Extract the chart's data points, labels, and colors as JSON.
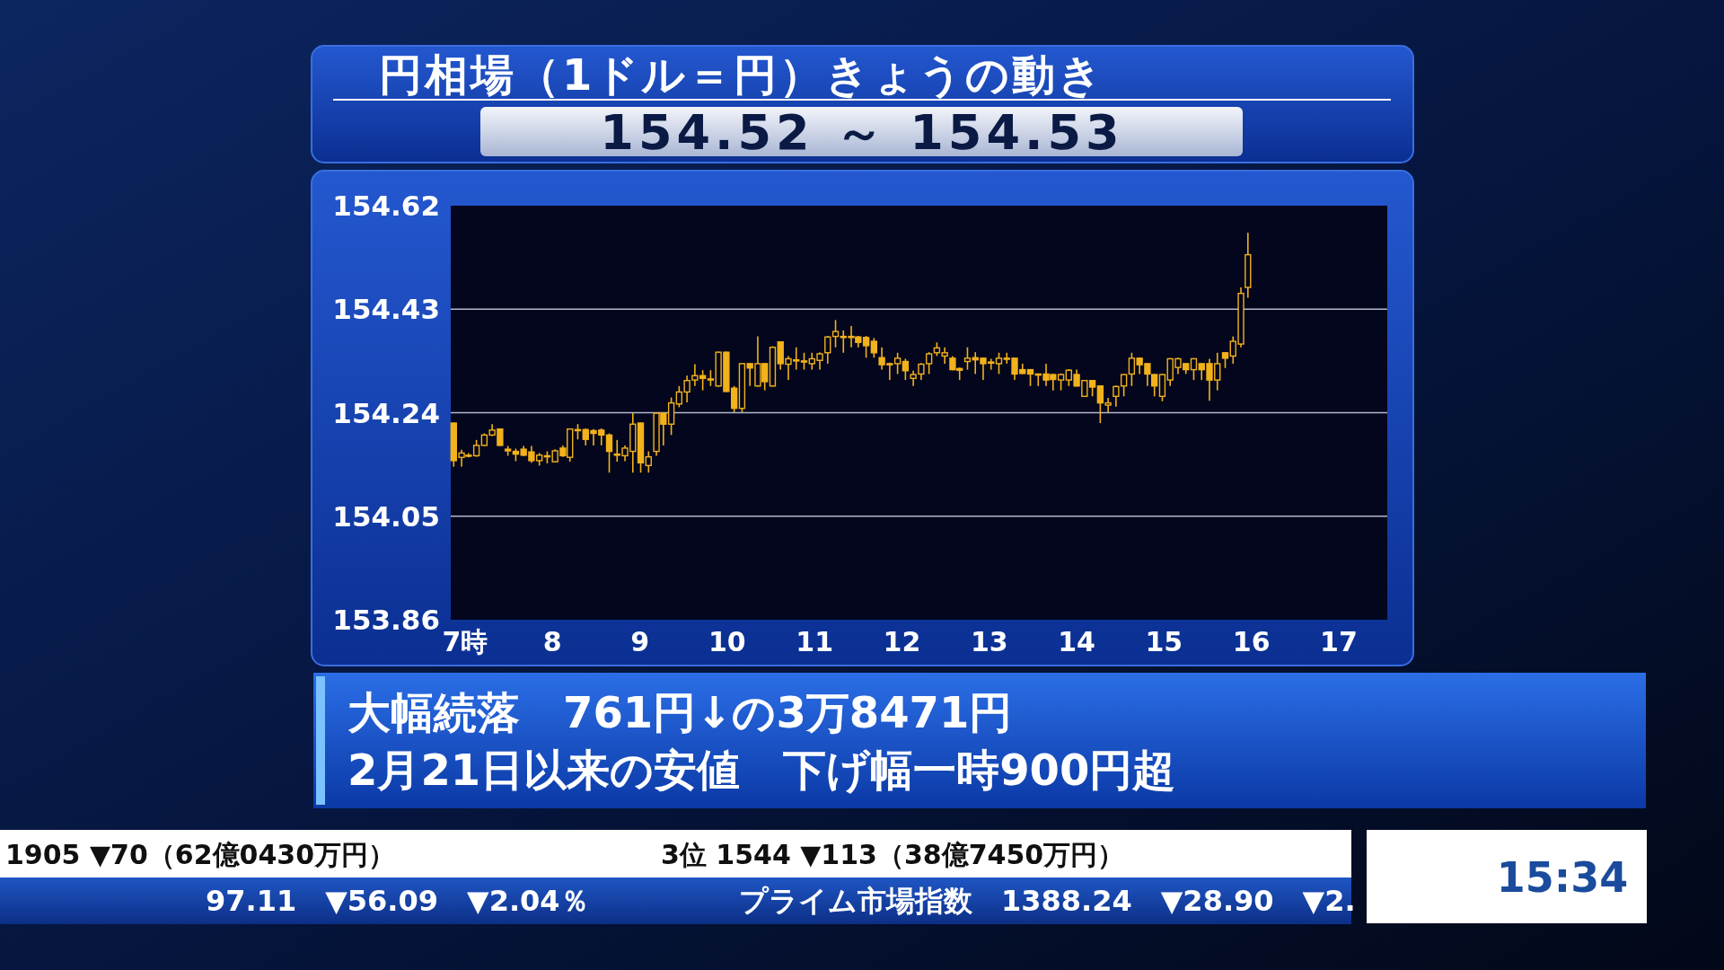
{
  "chart_data": {
    "type": "candlestick",
    "title": "円相場（1ドル＝円）きょうの動き",
    "subtitle": "154.52 ～ 154.53",
    "color": "#f2b21c",
    "xlim": [
      6.836,
      17.555
    ],
    "xticks": [
      {
        "value": 7,
        "label": "7時"
      },
      8,
      9,
      10,
      11,
      12,
      13,
      14,
      15,
      16,
      17
    ],
    "ylim": [
      153.86,
      154.62
    ],
    "yticks": [
      153.86,
      154.05,
      154.24,
      154.43,
      154.62
    ],
    "grid": "y",
    "x": [
      6.87,
      6.96,
      7.04,
      7.13,
      7.22,
      7.31,
      7.4,
      7.49,
      7.58,
      7.67,
      7.76,
      7.85,
      7.94,
      8.03,
      8.12,
      8.2,
      8.29,
      8.38,
      8.47,
      8.56,
      8.65,
      8.74,
      8.83,
      8.92,
      9.01,
      9.1,
      9.19,
      9.27,
      9.36,
      9.45,
      9.54,
      9.63,
      9.72,
      9.81,
      9.9,
      9.99,
      10.08,
      10.17,
      10.26,
      10.35,
      10.43,
      10.52,
      10.61,
      10.7,
      10.79,
      10.88,
      10.97,
      11.06,
      11.15,
      11.24,
      11.33,
      11.42,
      11.5,
      11.59,
      11.68,
      11.77,
      11.86,
      11.95,
      12.04,
      12.13,
      12.22,
      12.31,
      12.4,
      12.49,
      12.58,
      12.66,
      12.75,
      12.84,
      12.93,
      13.02,
      13.11,
      13.2,
      13.29,
      13.38,
      13.47,
      13.56,
      13.65,
      13.73,
      13.82,
      13.91,
      14.0,
      14.09,
      14.18,
      14.27,
      14.36,
      14.45,
      14.54,
      14.63,
      14.72,
      14.81,
      14.89,
      14.98,
      15.07,
      15.16,
      15.25,
      15.34,
      15.43,
      15.52,
      15.61,
      15.7,
      15.79,
      15.88,
      15.96
    ],
    "ohlc": [
      [
        154.221,
        154.222,
        154.141,
        154.152
      ],
      [
        154.158,
        154.172,
        154.141,
        154.166
      ],
      [
        154.161,
        154.166,
        154.158,
        154.162
      ],
      [
        154.161,
        154.19,
        154.159,
        154.18
      ],
      [
        154.18,
        154.202,
        154.179,
        154.199
      ],
      [
        154.199,
        154.219,
        154.197,
        154.208
      ],
      [
        154.21,
        154.211,
        154.179,
        154.18
      ],
      [
        154.173,
        154.179,
        154.161,
        154.17
      ],
      [
        154.169,
        154.174,
        154.151,
        154.164
      ],
      [
        154.173,
        154.179,
        154.16,
        154.162
      ],
      [
        154.168,
        154.179,
        154.148,
        154.152
      ],
      [
        154.152,
        154.166,
        154.143,
        154.162
      ],
      [
        154.161,
        154.169,
        154.147,
        154.159
      ],
      [
        154.15,
        154.173,
        154.149,
        154.17
      ],
      [
        154.175,
        154.18,
        154.159,
        154.161
      ],
      [
        154.158,
        154.211,
        154.15,
        154.21
      ],
      [
        154.207,
        154.219,
        154.191,
        154.209
      ],
      [
        154.209,
        154.211,
        154.18,
        154.191
      ],
      [
        154.207,
        154.21,
        154.18,
        154.202
      ],
      [
        154.208,
        154.211,
        154.18,
        154.199
      ],
      [
        154.199,
        154.202,
        154.13,
        154.169
      ],
      [
        154.164,
        154.19,
        154.15,
        154.162
      ],
      [
        154.161,
        154.18,
        154.151,
        154.175
      ],
      [
        154.169,
        154.239,
        154.13,
        154.219
      ],
      [
        154.221,
        154.222,
        154.13,
        154.148
      ],
      [
        154.143,
        154.169,
        154.13,
        154.159
      ],
      [
        154.169,
        154.24,
        154.161,
        154.239
      ],
      [
        154.239,
        154.24,
        154.18,
        154.219
      ],
      [
        154.219,
        154.268,
        154.199,
        154.258
      ],
      [
        154.256,
        154.289,
        154.25,
        154.278
      ],
      [
        154.278,
        154.308,
        154.259,
        154.299
      ],
      [
        154.3,
        154.329,
        154.289,
        154.308
      ],
      [
        154.308,
        154.318,
        154.281,
        154.303
      ],
      [
        154.302,
        154.318,
        154.289,
        154.3
      ],
      [
        154.289,
        154.352,
        154.288,
        154.351
      ],
      [
        154.351,
        154.352,
        154.278,
        154.279
      ],
      [
        154.285,
        154.289,
        154.241,
        154.248
      ],
      [
        154.248,
        154.331,
        154.241,
        154.33
      ],
      [
        154.33,
        154.331,
        154.289,
        154.322
      ],
      [
        154.289,
        154.38,
        154.288,
        154.33
      ],
      [
        154.33,
        154.331,
        154.281,
        154.297
      ],
      [
        154.289,
        154.362,
        154.288,
        154.36
      ],
      [
        154.37,
        154.371,
        154.319,
        154.33
      ],
      [
        154.329,
        154.344,
        154.3,
        154.339
      ],
      [
        154.337,
        154.36,
        154.319,
        154.335
      ],
      [
        154.335,
        154.35,
        154.319,
        154.333
      ],
      [
        154.33,
        154.35,
        154.319,
        154.339
      ],
      [
        154.336,
        154.351,
        154.319,
        154.348
      ],
      [
        154.35,
        154.381,
        154.33,
        154.379
      ],
      [
        154.38,
        154.41,
        154.36,
        154.389
      ],
      [
        154.38,
        154.391,
        154.35,
        154.379
      ],
      [
        154.379,
        154.399,
        154.36,
        154.38
      ],
      [
        154.379,
        154.381,
        154.36,
        154.369
      ],
      [
        154.378,
        154.381,
        154.341,
        154.363
      ],
      [
        154.371,
        154.377,
        154.341,
        154.35
      ],
      [
        154.341,
        154.36,
        154.319,
        154.328
      ],
      [
        154.33,
        154.332,
        154.3,
        154.329
      ],
      [
        154.33,
        154.35,
        154.311,
        154.34
      ],
      [
        154.334,
        154.339,
        154.3,
        154.317
      ],
      [
        154.303,
        154.317,
        154.289,
        154.31
      ],
      [
        154.311,
        154.331,
        154.3,
        154.329
      ],
      [
        154.33,
        154.351,
        154.311,
        154.348
      ],
      [
        154.35,
        154.369,
        154.344,
        154.359
      ],
      [
        154.344,
        154.36,
        154.33,
        154.35
      ],
      [
        154.34,
        154.344,
        154.318,
        154.319
      ],
      [
        154.321,
        154.323,
        154.3,
        154.318
      ],
      [
        154.334,
        154.36,
        154.319,
        154.34
      ],
      [
        154.341,
        154.351,
        154.311,
        154.337
      ],
      [
        154.34,
        154.341,
        154.3,
        154.33
      ],
      [
        154.333,
        154.339,
        154.319,
        154.331
      ],
      [
        154.33,
        154.35,
        154.311,
        154.34
      ],
      [
        154.34,
        154.35,
        154.33,
        154.339
      ],
      [
        154.34,
        154.341,
        154.3,
        154.311
      ],
      [
        154.319,
        154.33,
        154.311,
        154.312
      ],
      [
        154.319,
        154.32,
        154.289,
        154.311
      ],
      [
        154.311,
        154.312,
        154.289,
        154.31
      ],
      [
        154.311,
        154.33,
        154.289,
        154.3
      ],
      [
        154.31,
        154.311,
        154.281,
        154.301
      ],
      [
        154.3,
        154.312,
        154.281,
        154.31
      ],
      [
        154.3,
        154.32,
        154.289,
        154.318
      ],
      [
        154.31,
        154.319,
        154.288,
        154.289
      ],
      [
        154.27,
        154.3,
        154.269,
        154.299
      ],
      [
        154.299,
        154.3,
        154.27,
        154.287
      ],
      [
        154.289,
        154.29,
        154.221,
        154.258
      ],
      [
        154.254,
        154.267,
        154.241,
        154.258
      ],
      [
        154.27,
        154.29,
        154.251,
        154.288
      ],
      [
        154.289,
        154.311,
        154.27,
        154.31
      ],
      [
        154.311,
        154.35,
        154.289,
        154.34
      ],
      [
        154.34,
        154.341,
        154.311,
        154.328
      ],
      [
        154.33,
        154.331,
        154.289,
        154.311
      ],
      [
        154.31,
        154.311,
        154.27,
        154.289
      ],
      [
        154.27,
        154.311,
        154.261,
        154.31
      ],
      [
        154.3,
        154.34,
        154.289,
        154.339
      ],
      [
        154.323,
        154.341,
        154.311,
        154.339
      ],
      [
        154.33,
        154.331,
        154.311,
        154.319
      ],
      [
        154.319,
        154.34,
        154.3,
        154.339
      ],
      [
        154.33,
        154.331,
        154.3,
        154.319
      ],
      [
        154.33,
        154.339,
        154.262,
        154.3
      ],
      [
        154.3,
        154.35,
        154.281,
        154.33
      ],
      [
        154.35,
        154.351,
        154.322,
        154.34
      ],
      [
        154.344,
        154.38,
        154.33,
        154.371
      ],
      [
        154.366,
        154.47,
        154.36,
        154.459
      ],
      [
        154.47,
        154.57,
        154.451,
        154.53
      ]
    ],
    "annotations": [
      "大幅続落　761円↓の3万8471円",
      "2月21日以来の安値　下げ幅一時900円超",
      "1905 ▼70（62億0430万円）",
      "3位 1544 ▼113（38億7450万円）",
      "97.11　▼56.09　▼2.04％",
      "プライム市場指数　1388.24　▼28.90　▼2.",
      "15:34"
    ]
  }
}
